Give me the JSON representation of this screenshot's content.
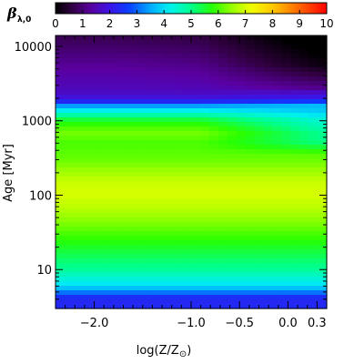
{
  "chart_data": {
    "type": "heatmap",
    "colorbar": {
      "label_symbol": "β",
      "label_subscript": "λ,0",
      "ticks": [
        "0",
        "1",
        "2",
        "3",
        "4",
        "5",
        "6",
        "7",
        "8",
        "9",
        "10"
      ],
      "range": [
        0,
        10
      ],
      "colormap": "rainbow (black-purple-blue-cyan-green-yellow-orange-red)"
    },
    "xlabel": "log(Z/Z",
    "xlabel_symbol": "⊙",
    "xlabel_close": ")",
    "ylabel": "Age",
    "ylabel_unit": "[Myr]",
    "xlim": [
      -2.4,
      0.4
    ],
    "ylim": [
      3,
      14000
    ],
    "yscale": "log",
    "x_ticks": [
      {
        "value": -2.0,
        "label": "−2.0"
      },
      {
        "value": -1.0,
        "label": "−1.0"
      },
      {
        "value": -0.5,
        "label": "−0.5"
      },
      {
        "value": 0.0,
        "label": "0.0"
      },
      {
        "value": 0.3,
        "label": "0.3"
      }
    ],
    "y_ticks": [
      {
        "value": 10,
        "label": "10"
      },
      {
        "value": 100,
        "label": "100"
      },
      {
        "value": 1000,
        "label": "1000"
      },
      {
        "value": 10000,
        "label": "10000"
      }
    ],
    "age_profile_myr": [
      {
        "age": 3,
        "beta": 2.4
      },
      {
        "age": 4,
        "beta": 2.3
      },
      {
        "age": 4.5,
        "beta": 2.6
      },
      {
        "age": 5,
        "beta": 3.2
      },
      {
        "age": 6,
        "beta": 4.0
      },
      {
        "age": 8,
        "beta": 4.5
      },
      {
        "age": 10,
        "beta": 4.9
      },
      {
        "age": 15,
        "beta": 5.3
      },
      {
        "age": 25,
        "beta": 5.8
      },
      {
        "age": 40,
        "beta": 6.3
      },
      {
        "age": 70,
        "beta": 6.8
      },
      {
        "age": 100,
        "beta": 7.0
      },
      {
        "age": 150,
        "beta": 6.9
      },
      {
        "age": 200,
        "beta": 6.6
      },
      {
        "age": 300,
        "beta": 6.2
      },
      {
        "age": 500,
        "beta": 6.0
      },
      {
        "age": 700,
        "beta": 6.3
      },
      {
        "age": 1000,
        "beta": 5.6
      },
      {
        "age": 1500,
        "beta": 3.8
      },
      {
        "age": 1900,
        "beta": 2.0
      },
      {
        "age": 2500,
        "beta": 1.6
      },
      {
        "age": 5000,
        "beta": 1.3
      },
      {
        "age": 10000,
        "beta": 0.9
      },
      {
        "age": 14000,
        "beta": 0.7
      }
    ],
    "metallicity_effect": "at log(Z/Zsun) near 0 to 0.3 old ages (>2000 Myr) fall to ~0.2; around 500-1000 Myr the green band shifts to cyan (~4.5) at high metallicity"
  }
}
